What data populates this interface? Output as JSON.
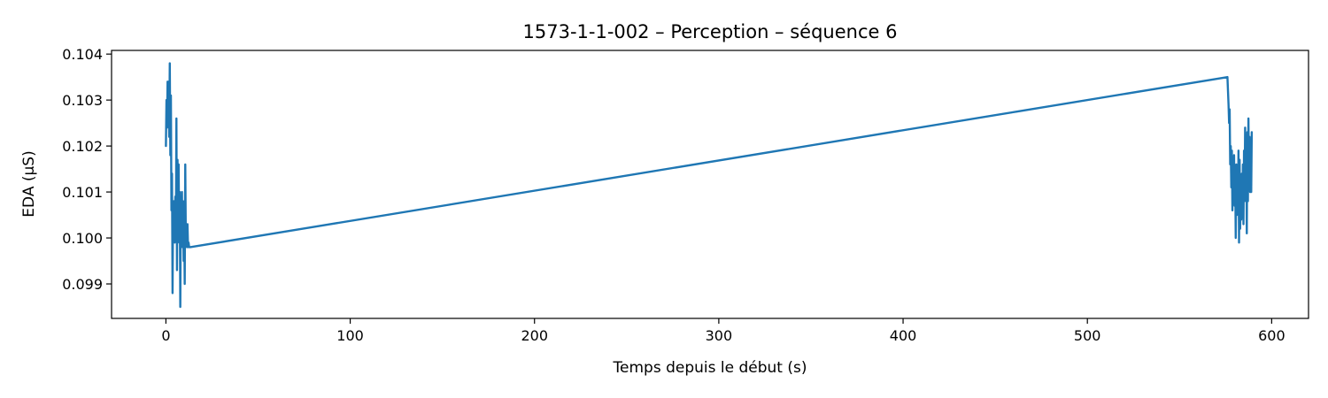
{
  "chart_data": {
    "type": "line",
    "title": "1573-1-1-002 – Perception – séquence 6",
    "xlabel": "Temps depuis le début (s)",
    "ylabel": "EDA (µS)",
    "xlim": [
      -29.5,
      620
    ],
    "ylim": [
      0.09825,
      0.10408
    ],
    "xticks": [
      0,
      100,
      200,
      300,
      400,
      500,
      600
    ],
    "xtick_labels": [
      "0",
      "100",
      "200",
      "300",
      "400",
      "500",
      "600"
    ],
    "yticks": [
      0.099,
      0.1,
      0.101,
      0.102,
      0.103,
      0.104
    ],
    "ytick_labels": [
      "0.099",
      "0.100",
      "0.101",
      "0.102",
      "0.103",
      "0.104"
    ],
    "grid": false,
    "legend": "none",
    "color": "#1f77b4",
    "series": [
      {
        "x": [
          0,
          0.3,
          0.6,
          0.9,
          1.2,
          1.5,
          1.8,
          2.1,
          2.4,
          2.7,
          3.0,
          3.3,
          3.6,
          3.9,
          4.2,
          4.5,
          4.8,
          5.1,
          5.4,
          5.7,
          6.0,
          6.3,
          6.6,
          6.9,
          7.2,
          7.5,
          7.8,
          8.1,
          8.4,
          8.7,
          9.0,
          9.3,
          9.6,
          9.9,
          10.2,
          10.5,
          10.8,
          11.1,
          11.4,
          11.7,
          12.0,
          12.3,
          12.6,
          12.9,
          13.2,
          576,
          576.3,
          576.6,
          576.9,
          577.2,
          577.5,
          577.8,
          578.1,
          578.4,
          578.7,
          579.0,
          579.3,
          579.6,
          579.9,
          580.2,
          580.5,
          580.8,
          581.1,
          581.4,
          581.7,
          582.0,
          582.3,
          582.6,
          582.9,
          583.2,
          583.5,
          583.8,
          584.1,
          584.4,
          584.7,
          585.0,
          585.3,
          585.6,
          585.9,
          586.2,
          586.5,
          586.8,
          587.1,
          587.4,
          587.7,
          588.0,
          588.3,
          588.6,
          588.9,
          589.2
        ],
        "y": [
          0.102,
          0.103,
          0.1024,
          0.1034,
          0.1028,
          0.1034,
          0.1022,
          0.1038,
          0.1018,
          0.1031,
          0.1006,
          0.1014,
          0.0988,
          0.1008,
          0.1,
          0.1008,
          0.0999,
          0.1009,
          0.1,
          0.1026,
          0.0993,
          0.1017,
          0.1002,
          0.1016,
          0.0999,
          0.101,
          0.0985,
          0.1009,
          0.1,
          0.101,
          0.0998,
          0.1008,
          0.0995,
          0.1005,
          0.099,
          0.1016,
          0.1,
          0.1002,
          0.0998,
          0.1003,
          0.0998,
          0.0999,
          0.0998,
          0.0998,
          0.0998,
          0.1035,
          0.1032,
          0.1029,
          0.1025,
          0.1028,
          0.1016,
          0.102,
          0.1011,
          0.1019,
          0.1006,
          0.1017,
          0.1009,
          0.1018,
          0.1007,
          0.1015,
          0.1,
          0.1016,
          0.1005,
          0.1014,
          0.1006,
          0.1019,
          0.0999,
          0.1017,
          0.1002,
          0.1011,
          0.1004,
          0.1014,
          0.1006,
          0.1016,
          0.1003,
          0.1019,
          0.1008,
          0.1024,
          0.1012,
          0.1022,
          0.1001,
          0.1023,
          0.1008,
          0.1026,
          0.1012,
          0.1022,
          0.101,
          0.1019,
          0.101,
          0.1023
        ]
      }
    ]
  }
}
